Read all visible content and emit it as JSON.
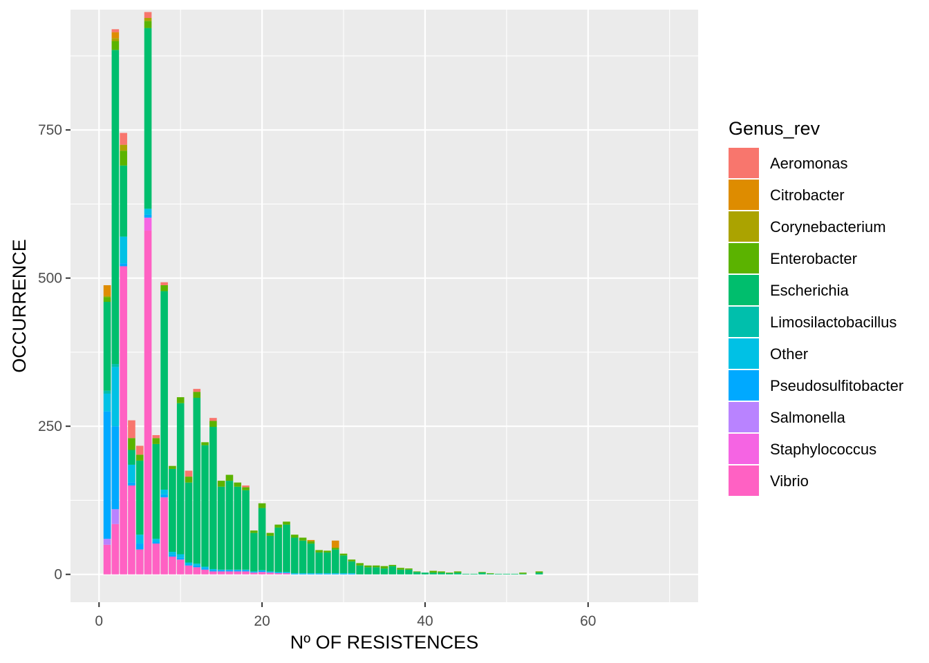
{
  "chart_data": {
    "type": "bar",
    "stacked": true,
    "xlabel": "Nº OF RESISTENCES",
    "ylabel": "OCCURRENCE",
    "xlim": [
      -3.5,
      73.5
    ],
    "ylim": [
      -47,
      953
    ],
    "x_ticks": [
      0,
      20,
      40,
      60
    ],
    "y_ticks": [
      0,
      250,
      500,
      750
    ],
    "legend_title": "Genus_rev",
    "legend_position": "right",
    "grid": true,
    "panel_background": "#ebebeb",
    "grid_color": "#ffffff",
    "x": [
      1,
      2,
      3,
      4,
      5,
      6,
      7,
      8,
      9,
      10,
      11,
      12,
      13,
      14,
      15,
      16,
      17,
      18,
      19,
      20,
      21,
      22,
      23,
      24,
      25,
      26,
      27,
      28,
      29,
      30,
      31,
      32,
      33,
      34,
      35,
      36,
      37,
      38,
      39,
      40,
      41,
      42,
      43,
      44,
      45,
      46,
      47,
      48,
      49,
      50,
      51,
      52,
      53,
      54
    ],
    "series": [
      {
        "name": "Vibrio",
        "color": "#FF61C3",
        "values": [
          50,
          85,
          520,
          150,
          42,
          580,
          52,
          130,
          30,
          25,
          15,
          12,
          8,
          5,
          5,
          5,
          5,
          5,
          3,
          4,
          3,
          2,
          2,
          0,
          0,
          0,
          0,
          0,
          0,
          0,
          0,
          0,
          0,
          0,
          0,
          0,
          0,
          0,
          0,
          0,
          0,
          0,
          0,
          0,
          0,
          0,
          0,
          0,
          0,
          0,
          0,
          0,
          0,
          0
        ]
      },
      {
        "name": "Staphylococcus",
        "color": "#F564E3",
        "values": [
          0,
          0,
          0,
          0,
          0,
          22,
          0,
          0,
          0,
          0,
          0,
          0,
          0,
          0,
          0,
          0,
          0,
          0,
          0,
          0,
          0,
          0,
          0,
          0,
          0,
          0,
          0,
          0,
          0,
          0,
          0,
          0,
          0,
          0,
          0,
          0,
          0,
          0,
          0,
          0,
          0,
          0,
          0,
          0,
          0,
          0,
          0,
          0,
          0,
          0,
          0,
          0,
          0,
          0
        ]
      },
      {
        "name": "Salmonella",
        "color": "#B983FF",
        "values": [
          10,
          25,
          0,
          0,
          0,
          0,
          0,
          0,
          0,
          0,
          0,
          0,
          0,
          0,
          0,
          0,
          0,
          0,
          0,
          0,
          0,
          0,
          0,
          0,
          0,
          0,
          0,
          0,
          0,
          0,
          0,
          0,
          0,
          0,
          0,
          0,
          0,
          0,
          0,
          0,
          0,
          0,
          0,
          0,
          0,
          0,
          0,
          0,
          0,
          0,
          0,
          0,
          0,
          0
        ]
      },
      {
        "name": "Pseudosulfitobacter",
        "color": "#00A9FF",
        "values": [
          215,
          140,
          5,
          5,
          10,
          5,
          3,
          5,
          3,
          3,
          2,
          3,
          3,
          2,
          2,
          2,
          2,
          2,
          1,
          2,
          1,
          1,
          1,
          1,
          1,
          1,
          1,
          1,
          1,
          1,
          1,
          0,
          0,
          0,
          0,
          0,
          0,
          0,
          0,
          0,
          0,
          0,
          0,
          0,
          0,
          0,
          0,
          0,
          0,
          0,
          0,
          0,
          0,
          0
        ]
      },
      {
        "name": "Other",
        "color": "#00C1E5",
        "values": [
          30,
          100,
          45,
          30,
          15,
          10,
          5,
          8,
          5,
          6,
          3,
          3,
          2,
          2,
          1,
          1,
          1,
          1,
          1,
          1,
          1,
          1,
          1,
          1,
          1,
          1,
          1,
          1,
          1,
          1,
          1,
          0,
          0,
          0,
          0,
          0,
          0,
          0,
          0,
          0,
          0,
          0,
          0,
          0,
          0,
          0,
          0,
          0,
          0,
          0,
          0,
          0,
          0,
          0
        ]
      },
      {
        "name": "Limosilactobacillus",
        "color": "#00BFAC",
        "values": [
          5,
          5,
          0,
          0,
          0,
          0,
          0,
          0,
          0,
          0,
          0,
          0,
          0,
          0,
          0,
          0,
          0,
          0,
          0,
          0,
          0,
          0,
          0,
          0,
          0,
          0,
          0,
          0,
          0,
          0,
          0,
          0,
          0,
          0,
          0,
          0,
          0,
          0,
          0,
          0,
          0,
          0,
          0,
          0,
          0,
          0,
          0,
          0,
          0,
          0,
          0,
          0,
          0,
          0
        ]
      },
      {
        "name": "Escherichia",
        "color": "#00BE6D",
        "values": [
          150,
          530,
          120,
          25,
          125,
          305,
          160,
          335,
          140,
          255,
          135,
          280,
          205,
          240,
          140,
          150,
          140,
          134,
          65,
          105,
          60,
          75,
          80,
          60,
          55,
          50,
          35,
          35,
          40,
          30,
          20,
          15,
          12,
          12,
          10,
          14,
          8,
          8,
          4,
          3,
          3,
          3,
          2,
          3,
          1,
          1,
          3,
          1,
          1,
          1,
          1,
          1,
          0,
          3
        ]
      },
      {
        "name": "Enterobacter",
        "color": "#5BB300",
        "values": [
          8,
          15,
          25,
          20,
          10,
          12,
          10,
          10,
          5,
          10,
          10,
          10,
          5,
          10,
          10,
          10,
          7,
          5,
          4,
          8,
          5,
          5,
          5,
          5,
          5,
          4,
          4,
          3,
          3,
          3,
          3,
          4,
          3,
          3,
          4,
          2,
          3,
          2,
          1,
          0,
          3,
          2,
          1,
          2,
          0,
          0,
          1,
          1,
          0,
          0,
          0,
          2,
          0,
          2
        ]
      },
      {
        "name": "Corynebacterium",
        "color": "#ABA300",
        "values": [
          2,
          5,
          10,
          0,
          0,
          5,
          0,
          0,
          0,
          0,
          0,
          0,
          0,
          0,
          0,
          0,
          0,
          0,
          0,
          0,
          0,
          0,
          0,
          0,
          0,
          0,
          0,
          0,
          0,
          0,
          0,
          0,
          0,
          0,
          0,
          0,
          0,
          0,
          0,
          0,
          0,
          0,
          0,
          0,
          0,
          0,
          0,
          0,
          0,
          0,
          0,
          0,
          0,
          0
        ]
      },
      {
        "name": "Citrobacter",
        "color": "#DE8C00",
        "values": [
          18,
          10,
          0,
          0,
          0,
          0,
          0,
          0,
          0,
          0,
          0,
          0,
          0,
          0,
          0,
          0,
          0,
          0,
          0,
          0,
          0,
          0,
          0,
          0,
          0,
          2,
          0,
          0,
          12,
          0,
          0,
          0,
          0,
          0,
          0,
          0,
          0,
          0,
          0,
          0,
          0,
          0,
          0,
          0,
          0,
          0,
          0,
          0,
          0,
          0,
          0,
          0,
          0,
          0
        ]
      },
      {
        "name": "Aeromonas",
        "color": "#F8766D",
        "values": [
          0,
          5,
          20,
          30,
          15,
          10,
          5,
          5,
          0,
          0,
          10,
          5,
          0,
          5,
          0,
          0,
          0,
          3,
          0,
          0,
          0,
          0,
          0,
          0,
          0,
          0,
          0,
          0,
          0,
          0,
          0,
          0,
          0,
          0,
          0,
          0,
          0,
          0,
          0,
          0,
          0,
          0,
          0,
          0,
          0,
          0,
          0,
          0,
          0,
          0,
          0,
          0,
          0,
          0
        ]
      }
    ]
  },
  "legend_items": [
    {
      "label": "Aeromonas",
      "color": "#F8766D"
    },
    {
      "label": "Citrobacter",
      "color": "#DE8C00"
    },
    {
      "label": "Corynebacterium",
      "color": "#ABA300"
    },
    {
      "label": "Enterobacter",
      "color": "#5BB300"
    },
    {
      "label": "Escherichia",
      "color": "#00BE6D"
    },
    {
      "label": "Limosilactobacillus",
      "color": "#00BFAC"
    },
    {
      "label": "Other",
      "color": "#00C1E5"
    },
    {
      "label": "Pseudosulfitobacter",
      "color": "#00A9FF"
    },
    {
      "label": "Salmonella",
      "color": "#B983FF"
    },
    {
      "label": "Staphylococcus",
      "color": "#F564E3"
    },
    {
      "label": "Vibrio",
      "color": "#FF61C3"
    }
  ]
}
